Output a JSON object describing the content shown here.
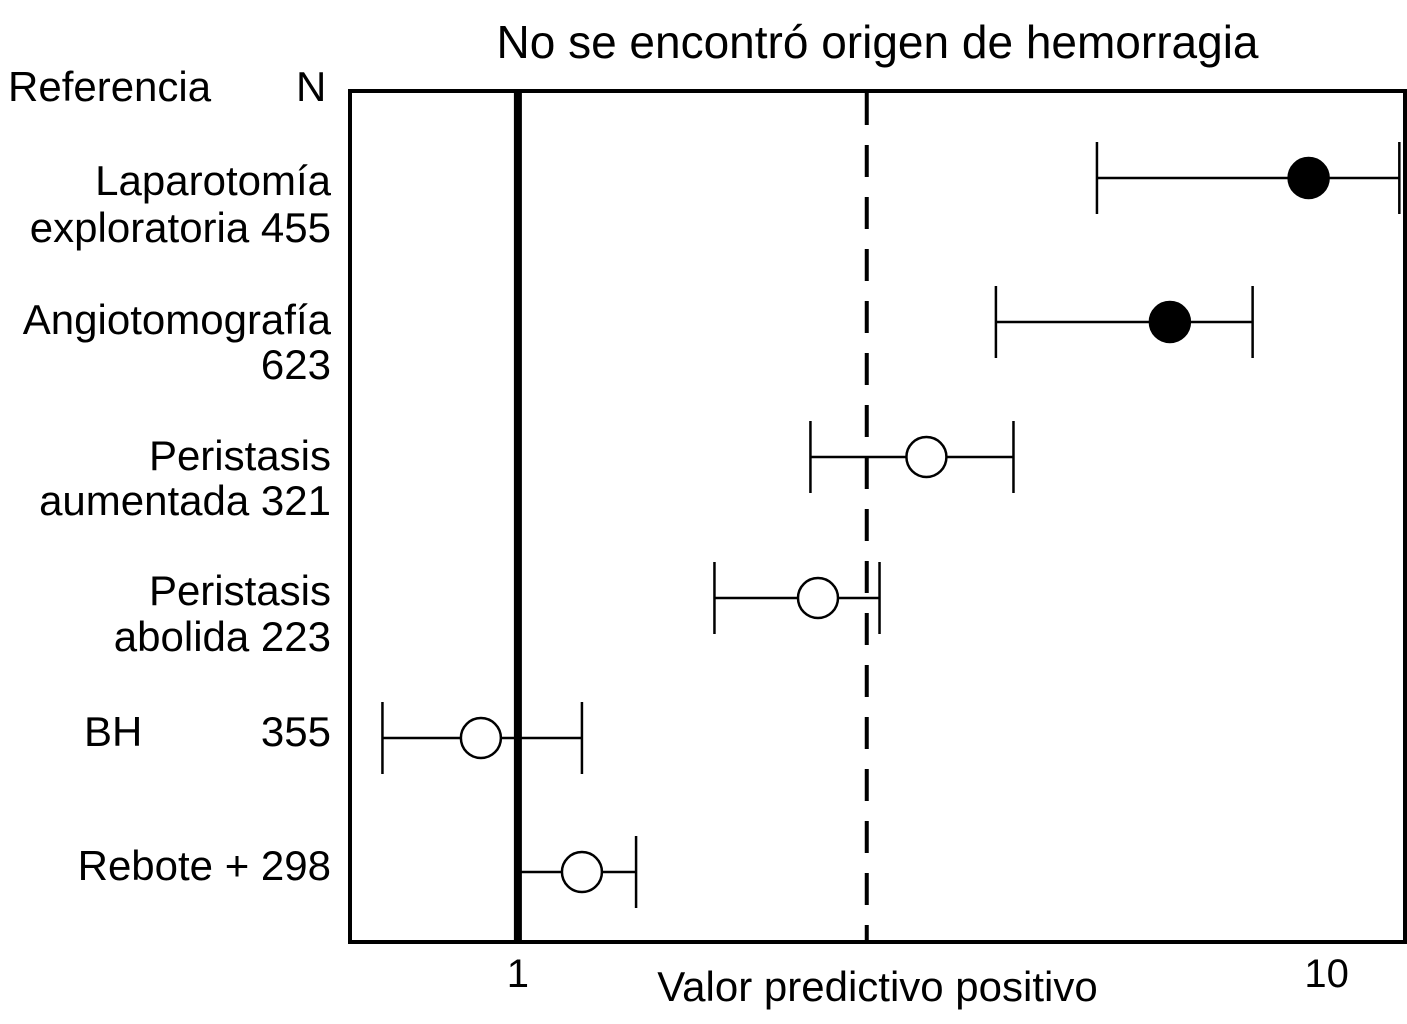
{
  "chart_data": {
    "type": "forest",
    "title": "No se encontró origen de hemorragia",
    "column_headers": {
      "reference": "Referencia",
      "n": "N"
    },
    "xlabel": "Valor predictivo positivo",
    "x_scale": "log",
    "xlim": [
      0.62,
      12.5
    ],
    "x_ticks": [
      {
        "value": 1,
        "label": "1"
      },
      {
        "value": 10,
        "label": "10"
      }
    ],
    "reference_line": {
      "value": 1,
      "style": "solid"
    },
    "dashed_line": {
      "value": 2.7,
      "style": "dashed"
    },
    "rows": [
      {
        "label_line1": "Laparotomía",
        "label_line2": "exploratoria",
        "n": "455",
        "estimate": 9.5,
        "ci_low": 5.2,
        "ci_high": 12.3,
        "marker": "filled"
      },
      {
        "label_line1": "Angiotomografía",
        "label_line2": "",
        "n": "623",
        "estimate": 6.4,
        "ci_low": 3.9,
        "ci_high": 8.1,
        "marker": "filled"
      },
      {
        "label_line1": "Peristasis",
        "label_line2": "aumentada",
        "n": "321",
        "estimate": 3.2,
        "ci_low": 2.3,
        "ci_high": 4.1,
        "marker": "open"
      },
      {
        "label_line1": "Peristasis",
        "label_line2": "abolida",
        "n": "223",
        "estimate": 2.35,
        "ci_low": 1.75,
        "ci_high": 2.8,
        "marker": "open"
      },
      {
        "label_line1": "BH",
        "label_line2": "",
        "n": "355",
        "estimate": 0.9,
        "ci_low": 0.68,
        "ci_high": 1.2,
        "marker": "open"
      },
      {
        "label_line1": "Rebote +",
        "label_line2": "",
        "n": "298",
        "estimate": 1.2,
        "ci_low": 1.0,
        "ci_high": 1.4,
        "marker": "open"
      }
    ]
  }
}
